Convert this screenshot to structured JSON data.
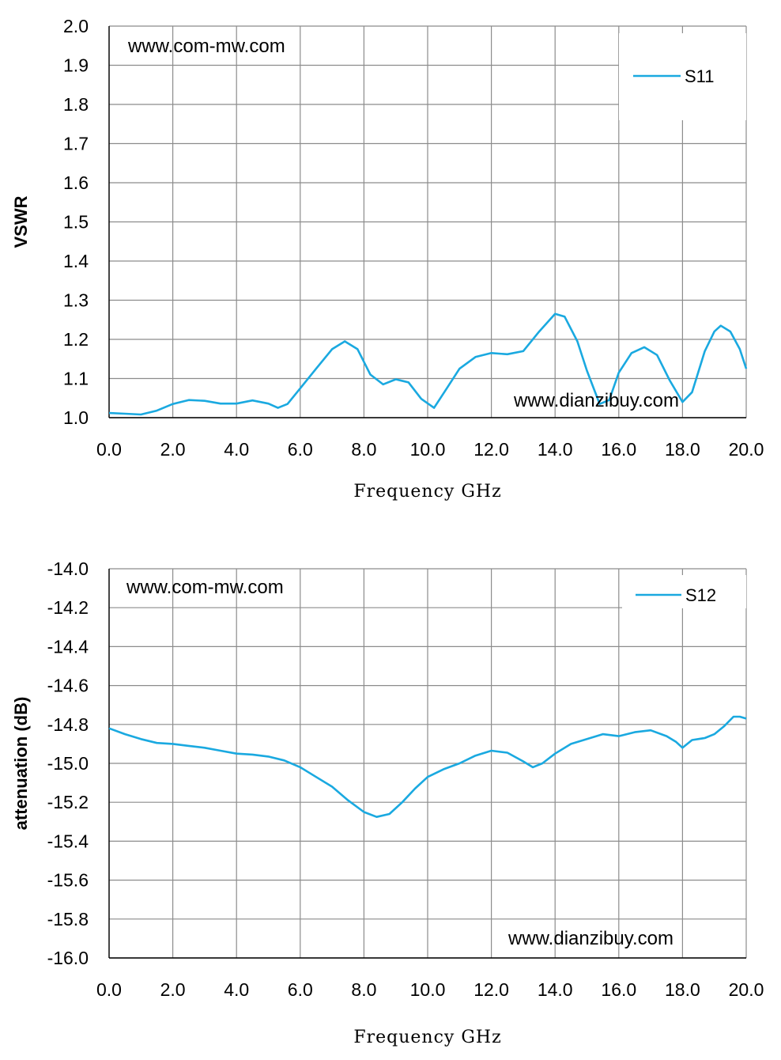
{
  "chart_data": [
    {
      "type": "line",
      "xlabel": "Frequency GHz",
      "ylabel": "VSWR",
      "xlim": [
        0,
        20
      ],
      "ylim": [
        1.0,
        2.0
      ],
      "x_ticks": [
        "0.0",
        "2.0",
        "4.0",
        "6.0",
        "8.0",
        "10.0",
        "12.0",
        "14.0",
        "16.0",
        "18.0",
        "20.0"
      ],
      "y_ticks": [
        "1.0",
        "1.1",
        "1.2",
        "1.3",
        "1.4",
        "1.5",
        "1.6",
        "1.7",
        "1.8",
        "1.9",
        "2.0"
      ],
      "grid": true,
      "legend_position": "top-right",
      "watermarks": [
        "www.com-mw.com",
        "www.dianzibuy.com"
      ],
      "series": [
        {
          "name": "S11",
          "color": "#1aa9e0",
          "x": [
            0,
            0.5,
            1.0,
            1.5,
            2.0,
            2.5,
            3.0,
            3.5,
            4.0,
            4.5,
            5.0,
            5.3,
            5.6,
            6.0,
            6.5,
            7.0,
            7.4,
            7.8,
            8.2,
            8.6,
            9.0,
            9.4,
            9.8,
            10.2,
            10.6,
            11.0,
            11.5,
            12.0,
            12.5,
            13.0,
            13.5,
            14.0,
            14.3,
            14.7,
            15.0,
            15.4,
            15.7,
            16.0,
            16.4,
            16.8,
            17.2,
            17.6,
            18.0,
            18.3,
            18.7,
            19.0,
            19.2,
            19.5,
            19.8,
            20.0
          ],
          "values": [
            1.012,
            1.01,
            1.008,
            1.018,
            1.035,
            1.045,
            1.043,
            1.036,
            1.036,
            1.044,
            1.036,
            1.025,
            1.035,
            1.075,
            1.125,
            1.175,
            1.195,
            1.175,
            1.11,
            1.085,
            1.098,
            1.09,
            1.048,
            1.025,
            1.075,
            1.125,
            1.155,
            1.165,
            1.162,
            1.17,
            1.22,
            1.265,
            1.258,
            1.195,
            1.12,
            1.035,
            1.045,
            1.115,
            1.165,
            1.18,
            1.16,
            1.095,
            1.04,
            1.065,
            1.17,
            1.22,
            1.235,
            1.22,
            1.175,
            1.125
          ]
        }
      ]
    },
    {
      "type": "line",
      "xlabel": "Frequency GHz",
      "ylabel": "attenuation (dB)",
      "xlim": [
        0,
        20
      ],
      "ylim": [
        -16.0,
        -14.0
      ],
      "x_ticks": [
        "0.0",
        "2.0",
        "4.0",
        "6.0",
        "8.0",
        "10.0",
        "12.0",
        "14.0",
        "16.0",
        "18.0",
        "20.0"
      ],
      "y_ticks": [
        "-16.0",
        "-15.8",
        "-15.6",
        "-15.4",
        "-15.2",
        "-15.0",
        "-14.8",
        "-14.6",
        "-14.4",
        "-14.2",
        "-14.0"
      ],
      "grid": true,
      "legend_position": "top-right",
      "watermarks": [
        "www.com-mw.com",
        "www.dianzibuy.com"
      ],
      "series": [
        {
          "name": "S12",
          "color": "#1aa9e0",
          "x": [
            0,
            0.5,
            1.0,
            1.5,
            2.0,
            2.5,
            3.0,
            3.5,
            4.0,
            4.5,
            5.0,
            5.5,
            6.0,
            6.5,
            7.0,
            7.5,
            8.0,
            8.4,
            8.8,
            9.2,
            9.6,
            10.0,
            10.5,
            11.0,
            11.5,
            12.0,
            12.5,
            13.0,
            13.3,
            13.6,
            14.0,
            14.5,
            15.0,
            15.5,
            16.0,
            16.5,
            17.0,
            17.5,
            17.8,
            18.0,
            18.3,
            18.7,
            19.0,
            19.3,
            19.6,
            19.8,
            20.0
          ],
          "values": [
            -14.82,
            -14.85,
            -14.875,
            -14.895,
            -14.9,
            -14.91,
            -14.92,
            -14.935,
            -14.95,
            -14.955,
            -14.965,
            -14.985,
            -15.02,
            -15.07,
            -15.12,
            -15.19,
            -15.25,
            -15.275,
            -15.26,
            -15.2,
            -15.13,
            -15.07,
            -15.03,
            -15.0,
            -14.96,
            -14.935,
            -14.945,
            -14.99,
            -15.02,
            -15.0,
            -14.95,
            -14.9,
            -14.875,
            -14.85,
            -14.86,
            -14.84,
            -14.83,
            -14.86,
            -14.89,
            -14.92,
            -14.88,
            -14.87,
            -14.85,
            -14.81,
            -14.76,
            -14.76,
            -14.77
          ]
        }
      ]
    }
  ]
}
